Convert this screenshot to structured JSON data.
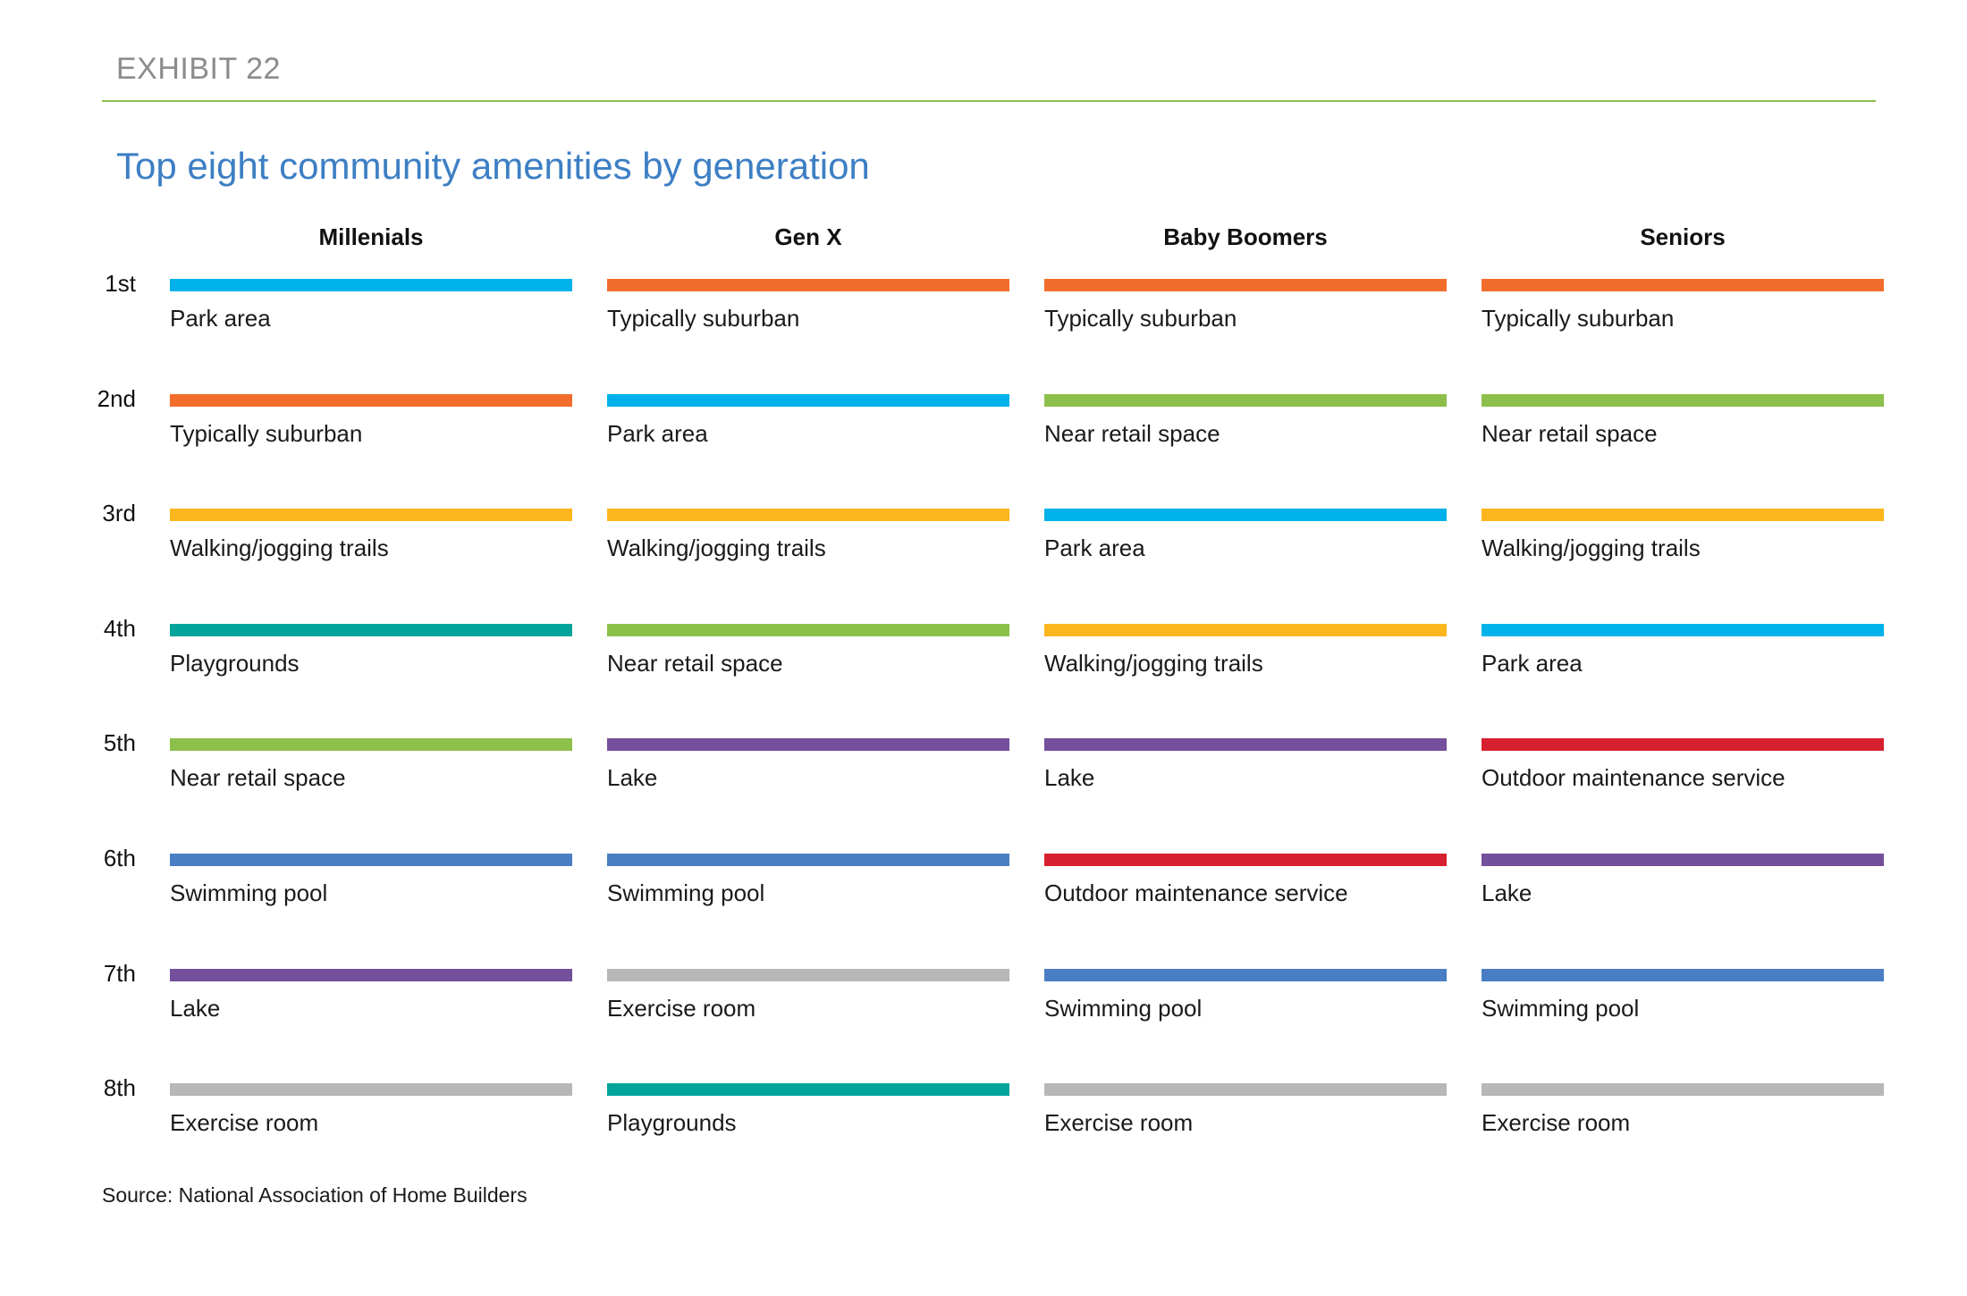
{
  "header": {
    "exhibit": "EXHIBIT 22"
  },
  "chart_data": {
    "type": "table",
    "title": "Top eight community amenities by generation",
    "columns": [
      "Millenials",
      "Gen X",
      "Baby Boomers",
      "Seniors"
    ],
    "ranks": [
      "1st",
      "2nd",
      "3rd",
      "4th",
      "5th",
      "6th",
      "7th",
      "8th"
    ],
    "amenity_colors": {
      "Park area": "#00b2e9",
      "Typically suburban": "#f26d2b",
      "Walking/jogging trails": "#fcb61d",
      "Playgrounds": "#00a49a",
      "Near retail space": "#8cc04b",
      "Swimming pool": "#4a7ec4",
      "Lake": "#744f9b",
      "Exercise room": "#b7b7b7",
      "Outdoor maintenance service": "#d7202f"
    },
    "series": [
      {
        "name": "Millenials",
        "values": [
          "Park area",
          "Typically suburban",
          "Walking/jogging trails",
          "Playgrounds",
          "Near retail space",
          "Swimming pool",
          "Lake",
          "Exercise room"
        ]
      },
      {
        "name": "Gen X",
        "values": [
          "Typically suburban",
          "Park area",
          "Walking/jogging trails",
          "Near retail space",
          "Lake",
          "Swimming pool",
          "Exercise room",
          "Playgrounds"
        ]
      },
      {
        "name": "Baby Boomers",
        "values": [
          "Typically suburban",
          "Near retail space",
          "Park area",
          "Walking/jogging trails",
          "Lake",
          "Outdoor maintenance service",
          "Swimming pool",
          "Exercise room"
        ]
      },
      {
        "name": "Seniors",
        "values": [
          "Typically suburban",
          "Near retail space",
          "Walking/jogging trails",
          "Park area",
          "Outdoor maintenance service",
          "Lake",
          "Swimming pool",
          "Exercise room"
        ]
      }
    ]
  },
  "footer": {
    "source": "Source: National Association of Home Builders"
  }
}
